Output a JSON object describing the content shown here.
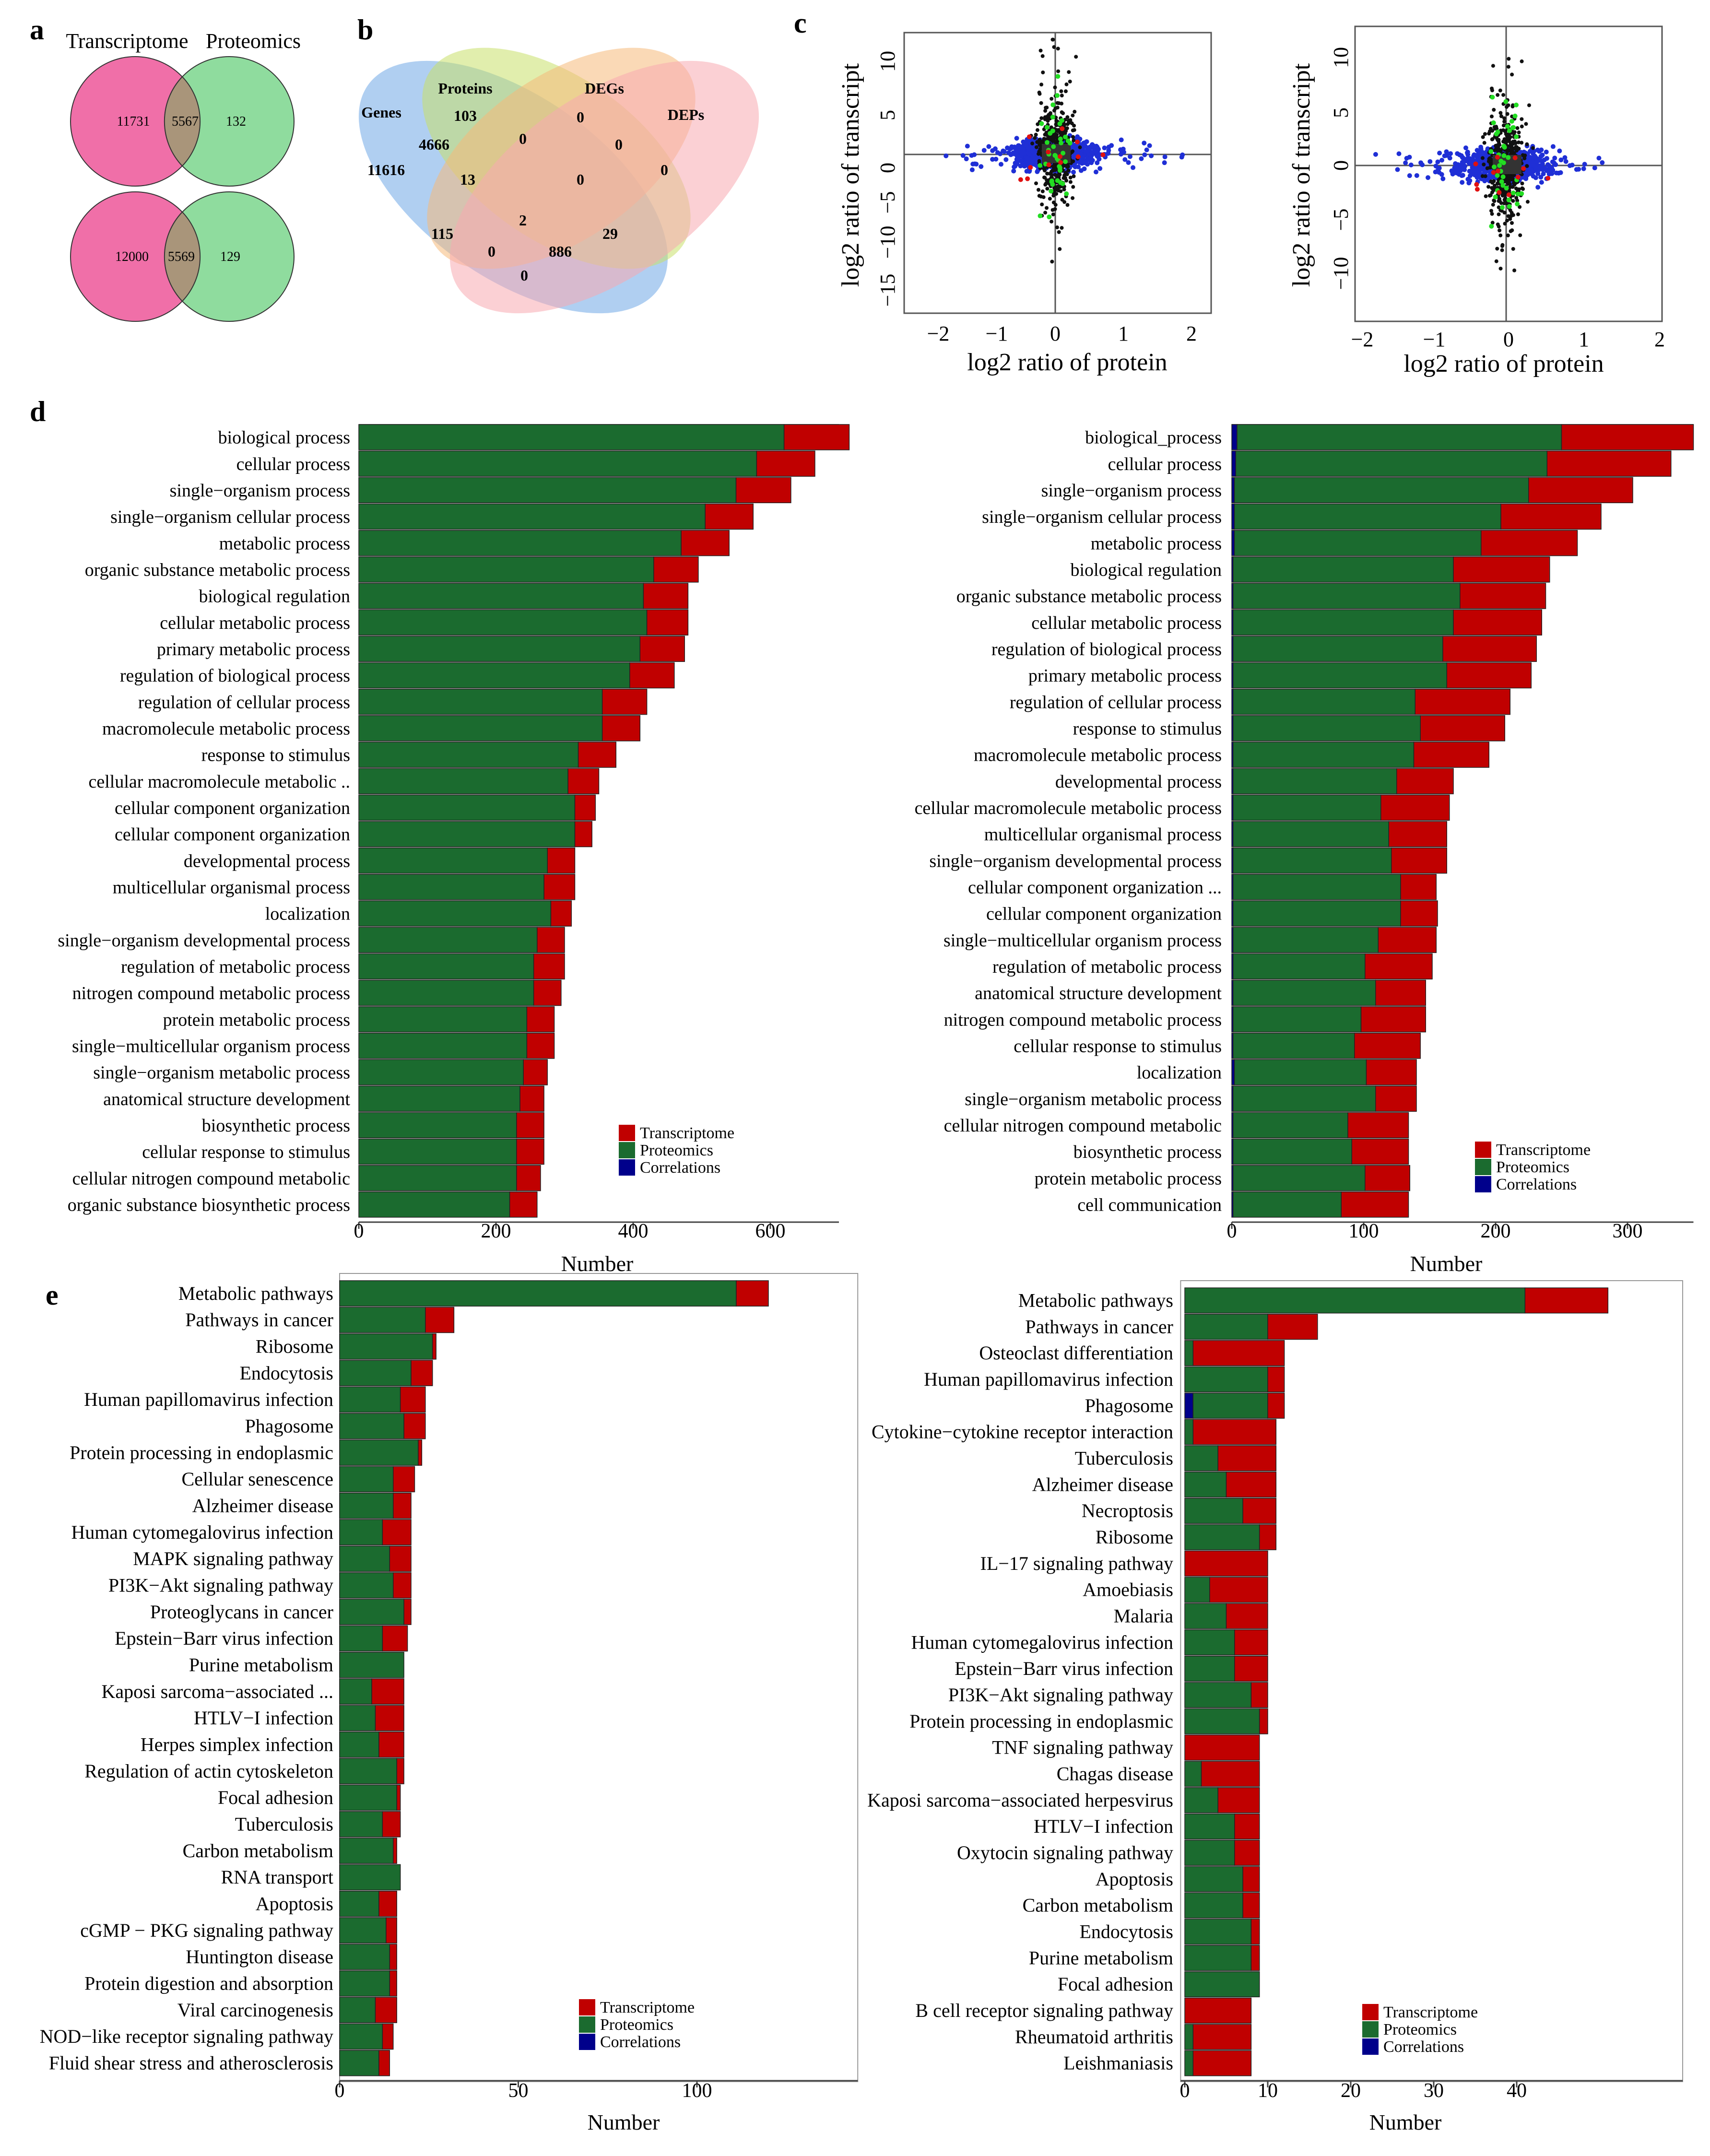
{
  "colors": {
    "transcriptome": "#c00000",
    "proteomics": "#1b6b2f",
    "correlations": "#00008b",
    "pink": "#f06fa8",
    "green": "#8fdc9e",
    "overlap": "#a9957a"
  },
  "panel_a": {
    "letter": "a",
    "titles": [
      "Transcriptome",
      "Proteomics"
    ],
    "top": {
      "left": "11731",
      "overlap": "5567",
      "right": "132"
    },
    "bottom": {
      "left": "12000",
      "overlap": "5569",
      "right": "129"
    }
  },
  "panel_b": {
    "letter": "b",
    "set_labels": [
      "Genes",
      "Proteins",
      "DEGs",
      "DEPs"
    ],
    "values": [
      "11616",
      "103",
      "0",
      "0",
      "4666",
      "0",
      "0",
      "13",
      "0",
      "115",
      "2",
      "29",
      "0",
      "886",
      "0"
    ]
  },
  "panel_c": {
    "letter": "c",
    "xlabel": "log2 ratio of protein",
    "ylabel": "log2 ratio of transcript",
    "left": {
      "xticks": [
        "−2",
        "−1",
        "0",
        "1",
        "2"
      ],
      "yticks": [
        "10",
        "5",
        "0",
        "−5",
        "−10",
        "−15"
      ]
    },
    "right": {
      "xticks": [
        "−2",
        "−1",
        "0",
        "1",
        "2"
      ],
      "yticks": [
        "10",
        "5",
        "0",
        "−5",
        "−10"
      ]
    }
  },
  "chart_data": [
    {
      "type": "bar",
      "id": "d-left",
      "title": "d",
      "xlabel": "Number",
      "xlim": [
        0,
        700
      ],
      "xticks": [
        "0",
        "200",
        "400",
        "600"
      ],
      "legend": [
        "Transcriptome",
        "Proteomics",
        "Correlations"
      ],
      "categories": [
        "biological process",
        "cellular process",
        "single−organism process",
        "single−organism cellular process",
        "metabolic process",
        "organic substance metabolic process",
        "biological regulation",
        "cellular metabolic process",
        "primary metabolic process",
        "regulation of biological process",
        "regulation of cellular process",
        "macromolecule metabolic process",
        "response to stimulus",
        "cellular macromolecule metabolic ..",
        "cellular component organization",
        "cellular component organization",
        "developmental process",
        "multicellular organismal process",
        "localization",
        "single−organism developmental process",
        "regulation of metabolic process",
        "nitrogen compound metabolic process",
        "protein metabolic process",
        "single−multicellular organism process",
        "single−organism metabolic process",
        "anatomical structure development",
        "biosynthetic process",
        "cellular response to stimulus",
        "cellular nitrogen compound metabolic",
        "organic substance biosynthetic process"
      ],
      "series": [
        {
          "name": "Proteomics",
          "values": [
            620,
            580,
            550,
            505,
            470,
            430,
            415,
            420,
            410,
            395,
            355,
            355,
            320,
            305,
            315,
            315,
            275,
            270,
            280,
            260,
            255,
            255,
            245,
            245,
            240,
            235,
            230,
            230,
            230,
            220
          ]
        },
        {
          "name": "Transcriptome",
          "values": [
            95,
            85,
            80,
            70,
            70,
            65,
            65,
            60,
            65,
            65,
            65,
            55,
            55,
            45,
            30,
            25,
            40,
            45,
            30,
            40,
            45,
            40,
            40,
            40,
            35,
            35,
            40,
            40,
            35,
            40
          ]
        }
      ]
    },
    {
      "type": "bar",
      "id": "d-right",
      "title": "",
      "xlabel": "Number",
      "xlim": [
        0,
        350
      ],
      "xticks": [
        "0",
        "100",
        "200",
        "300"
      ],
      "legend": [
        "Transcriptome",
        "Proteomics",
        "Correlations"
      ],
      "categories": [
        "biological_process",
        "cellular process",
        "single−organism process",
        "single−organism cellular process",
        "metabolic process",
        "biological regulation",
        "organic substance metabolic process",
        "cellular metabolic process",
        "regulation of biological process",
        "primary metabolic process",
        "regulation of cellular process",
        "response to stimulus",
        "macromolecule metabolic process",
        "developmental process",
        "cellular macromolecule metabolic process",
        "multicellular organismal process",
        "single−organism developmental process",
        "cellular component organization ...",
        "cellular component organization",
        "single−multicellular organism process",
        "regulation of metabolic process",
        "anatomical structure development",
        "nitrogen compound metabolic process",
        "cellular response to stimulus",
        "localization",
        "single−organism metabolic process",
        "cellular nitrogen compound metabolic",
        "biosynthetic process",
        "protein metabolic process",
        "cell communication"
      ],
      "series": [
        {
          "name": "Correlations",
          "values": [
            4,
            3,
            2,
            2,
            2,
            1,
            1,
            1,
            1,
            1,
            1,
            1,
            1,
            1,
            1,
            1,
            1,
            1,
            1,
            1,
            1,
            1,
            1,
            1,
            2,
            1,
            1,
            1,
            1,
            1
          ]
        },
        {
          "name": "Proteomics",
          "values": [
            246,
            236,
            223,
            202,
            187,
            167,
            172,
            167,
            159,
            162,
            138,
            142,
            137,
            124,
            112,
            118,
            120,
            127,
            127,
            110,
            100,
            108,
            97,
            92,
            100,
            108,
            87,
            90,
            100,
            82
          ]
        },
        {
          "name": "Transcriptome",
          "values": [
            100,
            94,
            79,
            76,
            73,
            73,
            65,
            67,
            71,
            64,
            72,
            64,
            57,
            43,
            52,
            44,
            42,
            27,
            28,
            44,
            51,
            38,
            49,
            50,
            38,
            31,
            46,
            43,
            34,
            51
          ]
        }
      ]
    },
    {
      "type": "bar",
      "id": "e-left",
      "title": "e",
      "xlabel": "Number",
      "xlim": [
        0,
        145
      ],
      "xticks": [
        "0",
        "50",
        "100"
      ],
      "legend": [
        "Transcriptome",
        "Proteomics",
        "Correlations"
      ],
      "categories": [
        "Metabolic pathways",
        "Pathways in cancer",
        "Ribosome",
        "Endocytosis",
        "Human papillomavirus infection",
        "Phagosome",
        "Protein processing in endoplasmic",
        "Cellular senescence",
        "Alzheimer disease",
        "Human cytomegalovirus infection",
        "MAPK signaling pathway",
        "PI3K−Akt signaling pathway",
        "Proteoglycans in cancer",
        "Epstein−Barr virus infection",
        "Purine metabolism",
        "Kaposi sarcoma−associated ...",
        "HTLV−I infection",
        "Herpes simplex infection",
        "Regulation of actin cytoskeleton",
        "Focal adhesion",
        "Tuberculosis",
        "Carbon metabolism",
        "RNA transport",
        "Apoptosis",
        "cGMP − PKG signaling pathway",
        "Huntington disease",
        "Protein digestion and absorption",
        "Viral carcinogenesis",
        "NOD−like receptor signaling pathway",
        "Fluid shear stress and atherosclerosis"
      ],
      "series": [
        {
          "name": "Proteomics",
          "values": [
            111,
            24,
            26,
            20,
            17,
            18,
            22,
            15,
            15,
            12,
            14,
            15,
            18,
            12,
            18,
            9,
            10,
            11,
            16,
            16,
            12,
            15,
            17,
            11,
            13,
            14,
            14,
            10,
            12,
            11
          ]
        },
        {
          "name": "Transcriptome",
          "values": [
            9,
            8,
            1,
            6,
            7,
            6,
            1,
            6,
            5,
            8,
            6,
            5,
            2,
            7,
            0,
            9,
            8,
            7,
            2,
            1,
            5,
            1,
            0,
            5,
            3,
            2,
            2,
            6,
            3,
            3
          ]
        }
      ]
    },
    {
      "type": "bar",
      "id": "e-right",
      "title": "",
      "xlabel": "Number",
      "xlim": [
        -0.5,
        60
      ],
      "xticks": [
        "0",
        "10",
        "20",
        "30",
        "40"
      ],
      "legend": [
        "Transcriptome",
        "Proteomics",
        "Correlations"
      ],
      "categories": [
        "Metabolic pathways",
        "Pathways in cancer",
        "Osteoclast differentiation",
        "Human papillomavirus infection",
        "Phagosome",
        "Cytokine−cytokine receptor interaction",
        "Tuberculosis",
        "Alzheimer disease",
        "Necroptosis",
        "Ribosome",
        "IL−17 signaling pathway",
        "Amoebiasis",
        "Malaria",
        "Human cytomegalovirus infection",
        "Epstein−Barr virus infection",
        "PI3K−Akt signaling pathway",
        "Protein processing in endoplasmic",
        "TNF signaling pathway",
        "Chagas disease",
        "Kaposi sarcoma−associated herpesvirus",
        "HTLV−I infection",
        "Oxytocin signaling pathway",
        "Apoptosis",
        "Carbon metabolism",
        "Endocytosis",
        "Purine metabolism",
        "Focal adhesion",
        "B cell receptor signaling pathway",
        "Rheumatoid arthritis",
        "Leishmaniasis"
      ],
      "series": [
        {
          "name": "Correlations",
          "values": [
            0,
            0,
            0,
            0,
            1,
            0,
            0,
            0,
            0,
            0,
            0,
            0,
            0,
            0,
            0,
            0,
            0,
            0,
            0,
            0,
            0,
            0,
            0,
            0,
            0,
            0,
            0,
            0,
            0,
            0
          ]
        },
        {
          "name": "Proteomics",
          "values": [
            41,
            10,
            1,
            10,
            9,
            1,
            4,
            5,
            7,
            9,
            0,
            3,
            5,
            6,
            6,
            8,
            9,
            0,
            2,
            4,
            6,
            6,
            7,
            7,
            8,
            8,
            9,
            0,
            1,
            1
          ]
        },
        {
          "name": "Transcriptome",
          "values": [
            10,
            6,
            11,
            2,
            2,
            10,
            7,
            6,
            4,
            2,
            10,
            7,
            5,
            4,
            4,
            2,
            1,
            9,
            7,
            5,
            3,
            3,
            2,
            2,
            1,
            1,
            0,
            8,
            7,
            7
          ]
        }
      ]
    }
  ]
}
